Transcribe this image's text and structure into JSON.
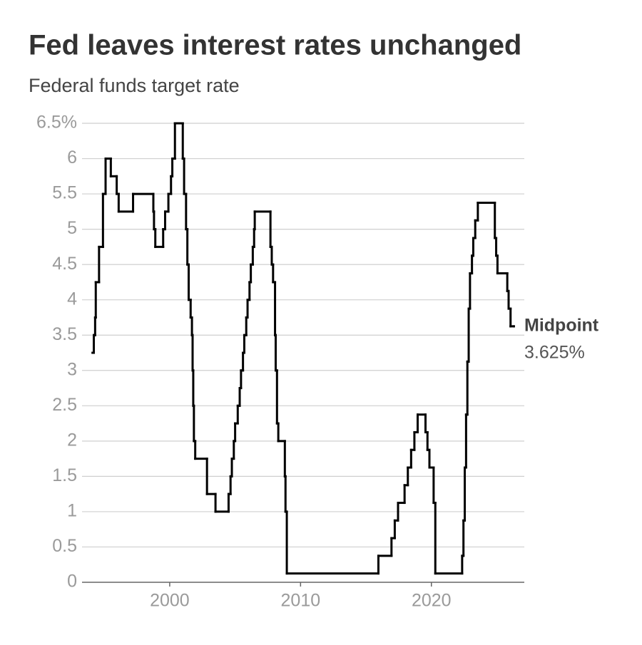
{
  "chart_data": {
    "type": "step",
    "title": "Fed leaves interest rates unchanged",
    "subtitle": "Federal funds target rate",
    "annotation": "Midpoint",
    "xlim": [
      1993.3,
      2027.1
    ],
    "xticks": [
      2000,
      2010,
      2020
    ],
    "ylim": [
      0,
      6.5
    ],
    "yticks": [
      0,
      0.5,
      1,
      1.5,
      2,
      2.5,
      3,
      3.5,
      4,
      4.5,
      5,
      5.5,
      6,
      {
        "value": 6.5,
        "label": "6.5%"
      }
    ],
    "grid": true,
    "series": [
      {
        "name": "Federal funds target rate",
        "color": "#000000",
        "x": [
          1994.1,
          1994.2,
          1994.3,
          1994.35,
          1994.6,
          1994.9,
          1995.1,
          1995.5,
          1995.95,
          1996.1,
          1997.2,
          1998.75,
          1998.8,
          1998.9,
          1999.5,
          1999.65,
          1999.9,
          2000.1,
          2000.2,
          2000.4,
          2001.0,
          2001.1,
          2001.25,
          2001.35,
          2001.45,
          2001.6,
          2001.7,
          2001.75,
          2001.8,
          2001.85,
          2001.95,
          2002.85,
          2003.5,
          2004.5,
          2004.65,
          2004.75,
          2004.9,
          2005.0,
          2005.2,
          2005.35,
          2005.45,
          2005.6,
          2005.7,
          2005.85,
          2005.95,
          2006.1,
          2006.2,
          2006.35,
          2006.45,
          2006.5,
          2007.7,
          2007.8,
          2007.9,
          2008.05,
          2008.1,
          2008.2,
          2008.3,
          2008.8,
          2008.85,
          2008.95,
          2015.95,
          2016.95,
          2017.2,
          2017.45,
          2017.95,
          2018.2,
          2018.45,
          2018.7,
          2018.95,
          2019.55,
          2019.7,
          2019.85,
          2020.17,
          2020.3,
          2022.35,
          2022.45,
          2022.55,
          2022.65,
          2022.75,
          2022.85,
          2022.95,
          2023.1,
          2023.2,
          2023.35,
          2023.55,
          2024.85,
          2024.95,
          2025.05,
          2025.8,
          2025.9,
          2026.05,
          2026.3
        ],
        "values": [
          3.25,
          3.5,
          3.75,
          4.25,
          4.75,
          5.5,
          6,
          5.75,
          5.5,
          5.25,
          5.5,
          5.25,
          5.0,
          4.75,
          5.0,
          5.25,
          5.5,
          5.75,
          6.0,
          6.5,
          6.0,
          5.5,
          5.0,
          4.5,
          4.0,
          3.75,
          3.5,
          3.0,
          2.5,
          2.0,
          1.75,
          1.25,
          1.0,
          1.25,
          1.5,
          1.75,
          2.0,
          2.25,
          2.5,
          2.75,
          3.0,
          3.25,
          3.5,
          3.75,
          4.0,
          4.25,
          4.5,
          4.75,
          5.0,
          5.25,
          4.75,
          4.5,
          4.25,
          3.5,
          3.0,
          2.25,
          2.0,
          1.5,
          1.0,
          0.125,
          0.375,
          0.625,
          0.875,
          1.125,
          1.375,
          1.625,
          1.875,
          2.125,
          2.375,
          2.125,
          1.875,
          1.625,
          1.125,
          0.125,
          0.375,
          0.875,
          1.625,
          2.375,
          3.125,
          3.875,
          4.375,
          4.625,
          4.875,
          5.125,
          5.375,
          4.875,
          4.625,
          4.375,
          4.125,
          3.875,
          3.625,
          3.625
        ],
        "value_labels": [
          null,
          null,
          null,
          null,
          null,
          null,
          null,
          null,
          null,
          null,
          null,
          null,
          null,
          null,
          null,
          null,
          null,
          null,
          null,
          null,
          null,
          null,
          null,
          null,
          null,
          null,
          null,
          null,
          null,
          null,
          null,
          null,
          null,
          null,
          null,
          null,
          null,
          null,
          null,
          null,
          null,
          null,
          null,
          null,
          null,
          null,
          null,
          null,
          null,
          null,
          null,
          null,
          null,
          null,
          null,
          null,
          null,
          null,
          null,
          null,
          null,
          null,
          null,
          null,
          null,
          null,
          null,
          null,
          null,
          null,
          null,
          null,
          null,
          null,
          null,
          null,
          null,
          null,
          null,
          null,
          null,
          null,
          null,
          null,
          null,
          null,
          null,
          null,
          null,
          null,
          null,
          "3.625%"
        ]
      }
    ]
  }
}
